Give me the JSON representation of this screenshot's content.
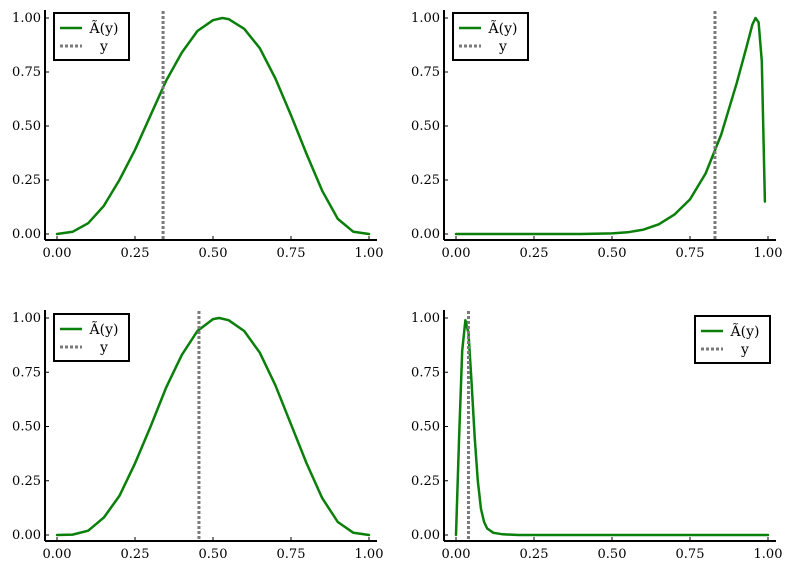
{
  "colors": {
    "curve": "#0a7f0a",
    "marker": "#7a7a7a",
    "axis": "#000000",
    "legend_border": "#000000",
    "background": "#ffffff"
  },
  "chart_data": [
    {
      "type": "line",
      "xlim": [
        0,
        1
      ],
      "ylim": [
        0,
        1
      ],
      "x_ticks": [
        "0.00",
        "0.25",
        "0.50",
        "0.75",
        "1.00"
      ],
      "y_ticks": [
        "0.00",
        "0.25",
        "0.50",
        "0.75",
        "1.00"
      ],
      "grid": false,
      "legend": {
        "position": "top-left",
        "entries": [
          {
            "label": "Ã(y)",
            "style": "solid",
            "color": "#0a7f0a"
          },
          {
            "label": "y",
            "style": "dotted",
            "color": "#7a7a7a"
          }
        ]
      },
      "series": [
        {
          "name": "Ã(y)",
          "style": "solid",
          "x": [
            0.0,
            0.05,
            0.1,
            0.15,
            0.2,
            0.25,
            0.3,
            0.35,
            0.4,
            0.45,
            0.5,
            0.53,
            0.55,
            0.6,
            0.65,
            0.7,
            0.75,
            0.8,
            0.85,
            0.9,
            0.95,
            1.0
          ],
          "y": [
            0.0,
            0.01,
            0.05,
            0.13,
            0.25,
            0.39,
            0.55,
            0.71,
            0.84,
            0.94,
            0.99,
            1.0,
            0.995,
            0.95,
            0.86,
            0.72,
            0.55,
            0.37,
            0.2,
            0.07,
            0.01,
            0.0
          ]
        }
      ],
      "vline": {
        "name": "y",
        "x": 0.34,
        "style": "dotted"
      }
    },
    {
      "type": "line",
      "xlim": [
        0,
        1
      ],
      "ylim": [
        0,
        1
      ],
      "x_ticks": [
        "0.00",
        "0.25",
        "0.50",
        "0.75",
        "1.00"
      ],
      "y_ticks": [
        "0.00",
        "0.25",
        "0.50",
        "0.75",
        "1.00"
      ],
      "grid": false,
      "legend": {
        "position": "top-left",
        "entries": [
          {
            "label": "Ã(y)",
            "style": "solid",
            "color": "#0a7f0a"
          },
          {
            "label": "y",
            "style": "dotted",
            "color": "#7a7a7a"
          }
        ]
      },
      "series": [
        {
          "name": "Ã(y)",
          "style": "solid",
          "x": [
            0.0,
            0.3,
            0.4,
            0.5,
            0.55,
            0.6,
            0.65,
            0.7,
            0.75,
            0.8,
            0.85,
            0.9,
            0.93,
            0.95,
            0.96,
            0.97,
            0.98,
            0.99
          ],
          "y": [
            0.0,
            0.0,
            0.0,
            0.003,
            0.008,
            0.02,
            0.045,
            0.09,
            0.16,
            0.28,
            0.46,
            0.7,
            0.86,
            0.97,
            1.0,
            0.98,
            0.8,
            0.15
          ]
        }
      ],
      "vline": {
        "name": "y",
        "x": 0.83,
        "style": "dotted"
      }
    },
    {
      "type": "line",
      "xlim": [
        0,
        1
      ],
      "ylim": [
        0,
        1
      ],
      "x_ticks": [
        "0.00",
        "0.25",
        "0.50",
        "0.75",
        "1.00"
      ],
      "y_ticks": [
        "0.00",
        "0.25",
        "0.50",
        "0.75",
        "1.00"
      ],
      "grid": false,
      "legend": {
        "position": "top-left",
        "entries": [
          {
            "label": "Ã(y)",
            "style": "solid",
            "color": "#0a7f0a"
          },
          {
            "label": "y",
            "style": "dotted",
            "color": "#7a7a7a"
          }
        ]
      },
      "series": [
        {
          "name": "Ã(y)",
          "style": "solid",
          "x": [
            0.0,
            0.05,
            0.1,
            0.15,
            0.2,
            0.25,
            0.3,
            0.35,
            0.4,
            0.45,
            0.5,
            0.52,
            0.55,
            0.6,
            0.65,
            0.7,
            0.75,
            0.8,
            0.85,
            0.9,
            0.95,
            1.0
          ],
          "y": [
            0.0,
            0.002,
            0.02,
            0.08,
            0.18,
            0.33,
            0.5,
            0.68,
            0.83,
            0.94,
            0.995,
            1.0,
            0.99,
            0.94,
            0.84,
            0.69,
            0.51,
            0.33,
            0.17,
            0.06,
            0.01,
            0.0
          ]
        }
      ],
      "vline": {
        "name": "y",
        "x": 0.455,
        "style": "dotted"
      }
    },
    {
      "type": "line",
      "xlim": [
        0,
        1
      ],
      "ylim": [
        0,
        1
      ],
      "x_ticks": [
        "0.00",
        "0.25",
        "0.50",
        "0.75",
        "1.00"
      ],
      "y_ticks": [
        "0.00",
        "0.25",
        "0.50",
        "0.75",
        "1.00"
      ],
      "grid": false,
      "legend": {
        "position": "top-right",
        "entries": [
          {
            "label": "Ã(y)",
            "style": "solid",
            "color": "#0a7f0a"
          },
          {
            "label": "y",
            "style": "dotted",
            "color": "#7a7a7a"
          }
        ]
      },
      "series": [
        {
          "name": "Ã(y)",
          "style": "solid",
          "x": [
            0.0,
            0.01,
            0.02,
            0.03,
            0.04,
            0.05,
            0.06,
            0.07,
            0.08,
            0.09,
            0.1,
            0.12,
            0.15,
            0.2,
            0.3,
            0.5,
            0.75,
            1.0
          ],
          "y": [
            0.0,
            0.45,
            0.85,
            0.99,
            0.93,
            0.7,
            0.45,
            0.25,
            0.12,
            0.06,
            0.03,
            0.01,
            0.003,
            0.0,
            0.0,
            0.0,
            0.0,
            0.0
          ]
        }
      ],
      "vline": {
        "name": "y",
        "x": 0.04,
        "style": "dotted"
      }
    }
  ]
}
